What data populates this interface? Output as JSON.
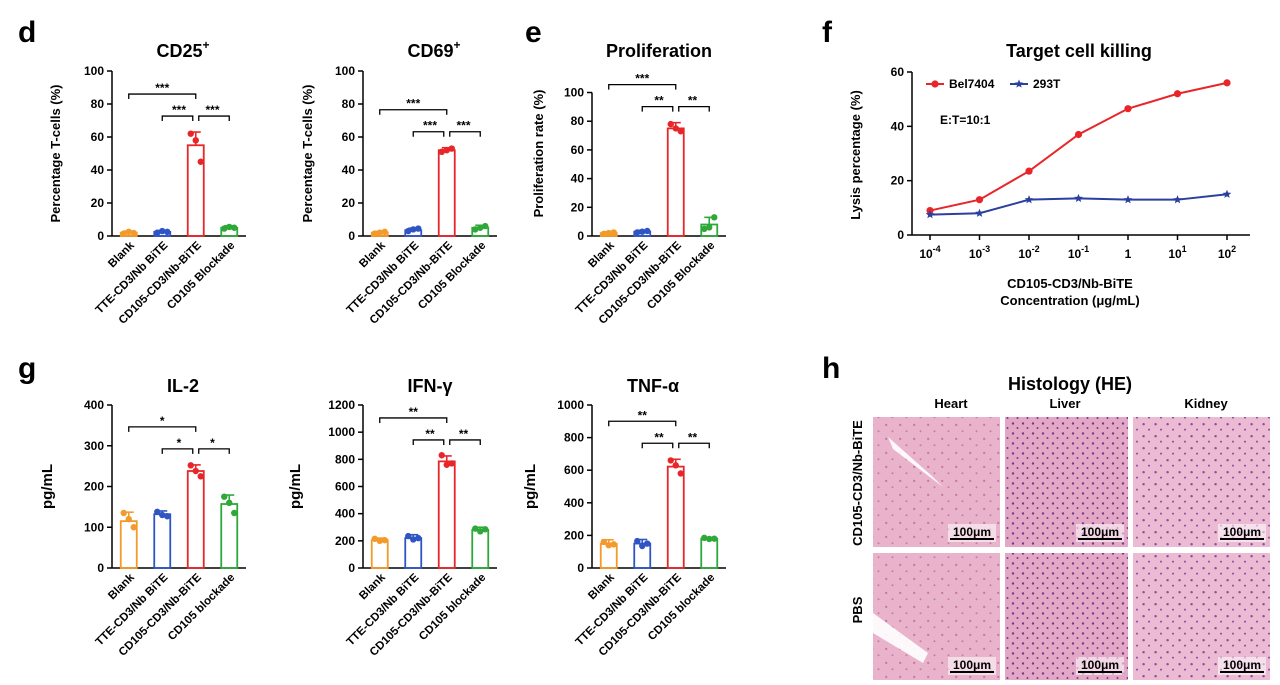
{
  "panel_letters": {
    "d": "d",
    "e": "e",
    "f": "f",
    "g": "g",
    "h": "h"
  },
  "colors": {
    "orange": "#f39a2b",
    "blue": "#2f55c4",
    "red": "#e8262a",
    "green": "#2fa83a",
    "line_blue": "#2a3f9e",
    "tissue_fill": "#e6a9c6",
    "tissue_nuclei": "#8c4e9a",
    "axis": "#000000"
  },
  "chart_data": [
    {
      "id": "cd25",
      "type": "bar",
      "title": "CD25",
      "title_sup": "+",
      "ylabel": "Percentage T-cells (%)",
      "ylim": [
        0,
        100
      ],
      "yticks": [
        0,
        20,
        40,
        60,
        80,
        100
      ],
      "categories": [
        "Blank",
        "TTE-CD3/Nb BiTE",
        "CD105-CD3/Nb-BiTE",
        "CD105 Blockade"
      ],
      "values": [
        2,
        2.5,
        55,
        5
      ],
      "errors": [
        1,
        0.8,
        8,
        1.2
      ],
      "points": [
        [
          1.5,
          2.5,
          1.8
        ],
        [
          2,
          3,
          2.5
        ],
        [
          62,
          58,
          45
        ],
        [
          4.5,
          5.5,
          5
        ]
      ],
      "significance": [
        {
          "from": 0,
          "to": 2,
          "label": "***"
        },
        {
          "from": 1,
          "to": 2,
          "label": "***"
        },
        {
          "from": 2,
          "to": 3,
          "label": "***"
        }
      ]
    },
    {
      "id": "cd69",
      "type": "bar",
      "title": "CD69",
      "title_sup": "+",
      "ylabel": "Percentage T-cells (%)",
      "ylim": [
        0,
        100
      ],
      "yticks": [
        0,
        20,
        40,
        60,
        80,
        100
      ],
      "categories": [
        "Blank",
        "TTE-CD3/Nb BiTE",
        "CD105-CD3/Nb-BiTE",
        "CD105 Blockade"
      ],
      "values": [
        2,
        3.5,
        52,
        5
      ],
      "errors": [
        0.8,
        1.2,
        1.5,
        1.5
      ],
      "points": [
        [
          1.5,
          2,
          2.5
        ],
        [
          3,
          4,
          4.5
        ],
        [
          51,
          52,
          53
        ],
        [
          4,
          5,
          6
        ]
      ],
      "significance": [
        {
          "from": 0,
          "to": 2,
          "label": "***"
        },
        {
          "from": 1,
          "to": 2,
          "label": "***"
        },
        {
          "from": 2,
          "to": 3,
          "label": "***"
        }
      ]
    },
    {
      "id": "prolif",
      "type": "bar",
      "title": "Proliferation",
      "title_sup": "",
      "ylabel": "Proliferation rate (%)",
      "ylim": [
        0,
        115
      ],
      "yticks": [
        0,
        20,
        40,
        60,
        80,
        100
      ],
      "categories": [
        "Blank",
        "TTE-CD3/Nb BiTE",
        "CD105-CD3/Nb-BiTE",
        "CD105 Blockade"
      ],
      "values": [
        2,
        3,
        75,
        8
      ],
      "errors": [
        1,
        1,
        4,
        5
      ],
      "points": [
        [
          1.5,
          2,
          2.5
        ],
        [
          2.5,
          3,
          3.5
        ],
        [
          78,
          75,
          73
        ],
        [
          5,
          6,
          13
        ]
      ],
      "significance": [
        {
          "from": 0,
          "to": 2,
          "label": "***"
        },
        {
          "from": 1,
          "to": 2,
          "label": "**"
        },
        {
          "from": 2,
          "to": 3,
          "label": "**"
        }
      ]
    },
    {
      "id": "killing",
      "type": "line",
      "title": "Target cell killing",
      "xlabel": "CD105-CD3/Nb-BiTE Concentration (μg/mL)",
      "xlabel_line1": "CD105-CD3/Nb-BiTE",
      "xlabel_line2": "Concentration (μg/mL)",
      "ylabel": "Lysis percentage (%)",
      "ylim": [
        0,
        60
      ],
      "yticks": [
        0,
        20,
        40,
        60
      ],
      "x_labels": [
        {
          "base": "10",
          "exp": "-4"
        },
        {
          "base": "10",
          "exp": "-3"
        },
        {
          "base": "10",
          "exp": "-2"
        },
        {
          "base": "10",
          "exp": "-1"
        },
        {
          "base": "1",
          "exp": ""
        },
        {
          "base": "10",
          "exp": "1"
        },
        {
          "base": "10",
          "exp": "2"
        }
      ],
      "annotation": "E:T=10:1",
      "series": [
        {
          "name": "Bel7404",
          "values": [
            9,
            13,
            23.5,
            37,
            46.5,
            52,
            56
          ]
        },
        {
          "name": "293T",
          "values": [
            7.5,
            8,
            13,
            13.5,
            13,
            13,
            15
          ]
        }
      ]
    },
    {
      "id": "il2",
      "type": "bar",
      "title": "IL-2",
      "title_sup": "",
      "ylabel": "pg/mL",
      "ylim": [
        0,
        400
      ],
      "yticks": [
        0,
        100,
        200,
        300,
        400
      ],
      "categories": [
        "Blank",
        "TTE-CD3/Nb BiTE",
        "CD105-CD3/Nb-BiTE",
        "CD105 blockade"
      ],
      "values": [
        115,
        132,
        238,
        157
      ],
      "errors": [
        22,
        8,
        15,
        22
      ],
      "points": [
        [
          135,
          120,
          100
        ],
        [
          138,
          130,
          127
        ],
        [
          252,
          238,
          225
        ],
        [
          175,
          160,
          135
        ]
      ],
      "significance": [
        {
          "from": 0,
          "to": 2,
          "label": "*"
        },
        {
          "from": 1,
          "to": 2,
          "label": "*"
        },
        {
          "from": 2,
          "to": 3,
          "label": "*"
        }
      ]
    },
    {
      "id": "ifng",
      "type": "bar",
      "title": "IFN-γ",
      "title_sup": "",
      "ylabel": "pg/mL",
      "ylim": [
        0,
        1200
      ],
      "yticks": [
        0,
        200,
        400,
        600,
        800,
        1000,
        1200
      ],
      "categories": [
        "Blank",
        "TTE-CD3/Nb BiTE",
        "CD105-CD3/Nb-BiTE",
        "CD105 blockade"
      ],
      "values": [
        205,
        220,
        785,
        280
      ],
      "errors": [
        15,
        25,
        40,
        20
      ],
      "points": [
        [
          215,
          200,
          205
        ],
        [
          235,
          210,
          220
        ],
        [
          830,
          760,
          770
        ],
        [
          290,
          270,
          285
        ]
      ],
      "significance": [
        {
          "from": 0,
          "to": 2,
          "label": "**"
        },
        {
          "from": 1,
          "to": 2,
          "label": "**"
        },
        {
          "from": 2,
          "to": 3,
          "label": "**"
        }
      ]
    },
    {
      "id": "tnfa",
      "type": "bar",
      "title": "TNF-α",
      "title_sup": "",
      "ylabel": "pg/mL",
      "ylim": [
        0,
        1000
      ],
      "yticks": [
        0,
        200,
        400,
        600,
        800,
        1000
      ],
      "categories": [
        "Blank",
        "TTE-CD3/Nb BiTE",
        "CD105-CD3/Nb-BiTE",
        "CD105 blockade"
      ],
      "values": [
        148,
        150,
        622,
        180
      ],
      "errors": [
        25,
        25,
        45,
        8
      ],
      "points": [
        [
          160,
          140,
          145
        ],
        [
          165,
          135,
          150
        ],
        [
          660,
          630,
          580
        ],
        [
          185,
          178,
          180
        ]
      ],
      "significance": [
        {
          "from": 0,
          "to": 2,
          "label": "**"
        },
        {
          "from": 1,
          "to": 2,
          "label": "**"
        },
        {
          "from": 2,
          "to": 3,
          "label": "**"
        }
      ]
    }
  ],
  "histology": {
    "title": "Histology (HE)",
    "columns": [
      "Heart",
      "Liver",
      "Kidney"
    ],
    "rows": [
      "CD105-CD3/Nb-BiTE",
      "PBS"
    ],
    "scale_bar": "100μm"
  }
}
